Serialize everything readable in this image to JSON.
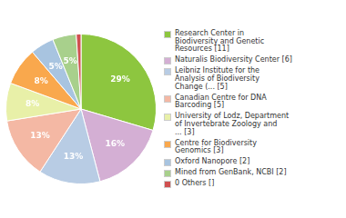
{
  "chart_data": {
    "type": "pie",
    "categories": [
      "Research Center in\nBiodiversity and Genetic\nResources [11]",
      "Naturalis Biodiversity Center [6]",
      "Leibniz Institute for the\nAnalysis of Biodiversity\nChange (... [5]",
      "Canadian Centre for DNA\nBarcoding [5]",
      "University of Lodz, Department\nof Invertebrate Zoology and\n... [3]",
      "Centre for Biodiversity\nGenomics [3]",
      "Oxford Nanopore [2]",
      "Mined from GenBank, NCBI [2]",
      "0 Others []"
    ],
    "values": [
      29,
      16,
      13,
      13,
      8,
      8,
      5,
      5,
      1
    ],
    "value_labels": [
      "29%",
      "16%",
      "13%",
      "13%",
      "8%",
      "8%",
      "5%",
      "5%",
      null
    ],
    "data_labels": true,
    "colors": [
      "#8dc63f",
      "#d4afd4",
      "#b8cce4",
      "#f4b8a4",
      "#e8f0a8",
      "#f9a84d",
      "#a8c4e0",
      "#a8d08c",
      "#d05050"
    ],
    "legend": "right"
  }
}
